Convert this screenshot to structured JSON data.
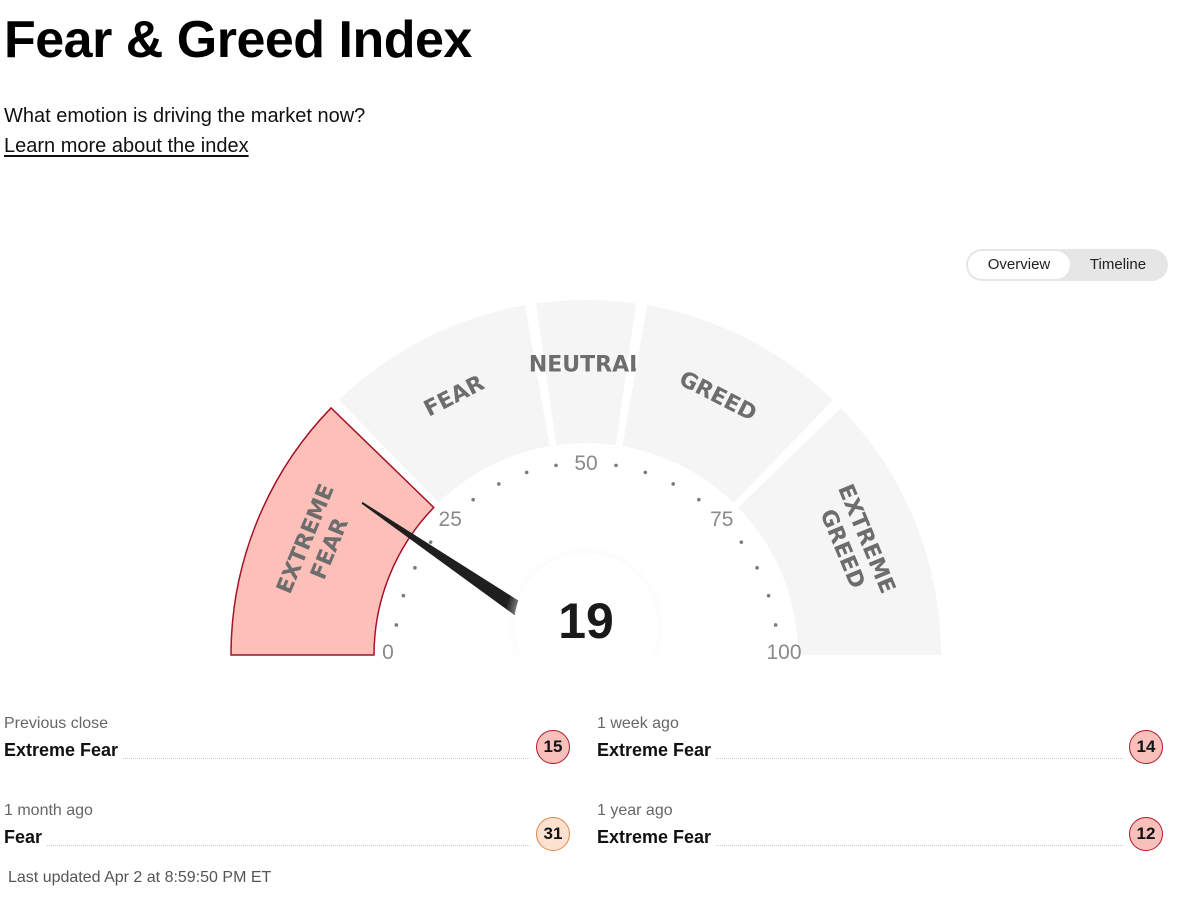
{
  "header": {
    "title": "Fear & Greed Index",
    "subtitle": "What emotion is driving the market now?",
    "learn_more": "Learn more about the index"
  },
  "view_toggle": {
    "options": [
      "Overview",
      "Timeline"
    ],
    "selected": "Overview"
  },
  "gauge": {
    "score": 19,
    "score_text": "19",
    "min": 0,
    "max": 100,
    "segments": [
      {
        "from": 0,
        "to": 25,
        "label_lines": [
          "EXTREME",
          "FEAR"
        ],
        "active": true
      },
      {
        "from": 25,
        "to": 45,
        "label_lines": [
          "FEAR"
        ],
        "active": false
      },
      {
        "from": 45,
        "to": 55,
        "label_lines": [
          "NEUTRAL"
        ],
        "active": false
      },
      {
        "from": 55,
        "to": 75,
        "label_lines": [
          "GREED"
        ],
        "active": false
      },
      {
        "from": 75,
        "to": 100,
        "label_lines": [
          "EXTREME",
          "GREED"
        ],
        "active": false
      }
    ],
    "tick_labels": [
      "0",
      "25",
      "50",
      "75",
      "100"
    ],
    "colors": {
      "active_fill": "#fcc0b9",
      "active_stroke": "#a4122a",
      "inactive_fill": "#f5f5f5",
      "needle": "#1f1f1f",
      "label": "#6d6d6d"
    }
  },
  "stats": [
    {
      "label": "Previous close",
      "rating": "Extreme Fear",
      "value": "15",
      "level": "extreme"
    },
    {
      "label": "1 week ago",
      "rating": "Extreme Fear",
      "value": "14",
      "level": "extreme"
    },
    {
      "label": "1 month ago",
      "rating": "Fear",
      "value": "31",
      "level": "fear"
    },
    {
      "label": "1 year ago",
      "rating": "Extreme Fear",
      "value": "12",
      "level": "extreme"
    }
  ],
  "last_updated": "Last updated Apr 2 at 8:59:50 PM ET"
}
